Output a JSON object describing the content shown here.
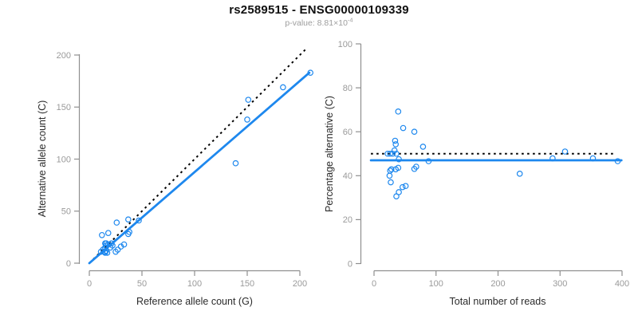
{
  "header": {
    "title": "rs2589515 - ENSG00000109339",
    "subtitle_prefix": "p-value: 8.81×10",
    "subtitle_exponent": "-4"
  },
  "colors": {
    "accent_blue": "#1E88EE",
    "dotted_line_black": "#000000",
    "axis_gray": "#8f8f8f",
    "tick_label_gray": "#9a9a9a",
    "axis_title_dark": "#2b2b2b"
  },
  "chart_data": [
    {
      "id": "left",
      "type": "scatter",
      "xlabel": "Reference allele count (G)",
      "ylabel": "Alternative allele count (C)",
      "xlim": [
        0,
        200
      ],
      "ylim": [
        0,
        200
      ],
      "xticks": [
        0,
        50,
        100,
        150,
        200
      ],
      "yticks": [
        0,
        50,
        100,
        150,
        200
      ],
      "grid": false,
      "legend": false,
      "marker": "open-circle",
      "identity_line": {
        "style": "dotted",
        "from": [
          0,
          0
        ],
        "to": [
          207,
          207
        ]
      },
      "fit_line": {
        "style": "solid",
        "from": [
          0,
          0
        ],
        "to": [
          209,
          183
        ]
      },
      "points": [
        [
          12,
          27
        ],
        [
          18,
          29
        ],
        [
          26,
          39
        ],
        [
          15,
          19
        ],
        [
          16,
          19
        ],
        [
          37,
          42
        ],
        [
          11,
          11
        ],
        [
          13,
          13
        ],
        [
          16,
          17
        ],
        [
          15,
          15
        ],
        [
          18,
          18
        ],
        [
          21,
          19
        ],
        [
          47,
          41
        ],
        [
          151,
          157
        ],
        [
          150,
          138
        ],
        [
          184,
          169
        ],
        [
          210,
          183
        ],
        [
          139,
          96
        ],
        [
          22,
          17
        ],
        [
          20,
          15
        ],
        [
          37,
          28
        ],
        [
          38,
          30
        ],
        [
          15,
          11
        ],
        [
          16,
          12
        ],
        [
          15,
          10
        ],
        [
          17,
          10
        ],
        [
          30,
          16
        ],
        [
          33,
          18
        ],
        [
          25,
          11
        ],
        [
          27,
          13
        ]
      ]
    },
    {
      "id": "right",
      "type": "scatter",
      "xlabel": "Total number of reads",
      "ylabel": "Percentage alternative (C)",
      "xlim": [
        0,
        400
      ],
      "ylim": [
        0,
        100
      ],
      "xticks": [
        0,
        100,
        200,
        300,
        400
      ],
      "yticks": [
        0,
        20,
        40,
        60,
        80,
        100
      ],
      "grid": false,
      "legend": false,
      "marker": "open-circle",
      "null_line": {
        "style": "dotted",
        "y": 50,
        "x_from": -5,
        "x_to": 386
      },
      "fit_line": {
        "style": "solid",
        "y": 47,
        "x_from": -5,
        "x_to": 399
      },
      "points": [
        [
          39,
          69.2
        ],
        [
          47,
          61.7
        ],
        [
          65,
          60.0
        ],
        [
          34,
          55.9
        ],
        [
          35,
          54.3
        ],
        [
          79,
          53.2
        ],
        [
          22,
          50.0
        ],
        [
          26,
          50.0
        ],
        [
          33,
          51.5
        ],
        [
          30,
          50.0
        ],
        [
          36,
          50.0
        ],
        [
          40,
          47.5
        ],
        [
          88,
          46.6
        ],
        [
          308,
          51.0
        ],
        [
          288,
          47.9
        ],
        [
          353,
          47.9
        ],
        [
          393,
          46.6
        ],
        [
          235,
          40.9
        ],
        [
          39,
          43.6
        ],
        [
          35,
          42.9
        ],
        [
          65,
          43.1
        ],
        [
          68,
          44.1
        ],
        [
          26,
          42.3
        ],
        [
          28,
          42.9
        ],
        [
          25,
          40.0
        ],
        [
          27,
          37.0
        ],
        [
          46,
          34.8
        ],
        [
          51,
          35.3
        ],
        [
          36,
          30.6
        ],
        [
          40,
          32.5
        ]
      ]
    }
  ]
}
